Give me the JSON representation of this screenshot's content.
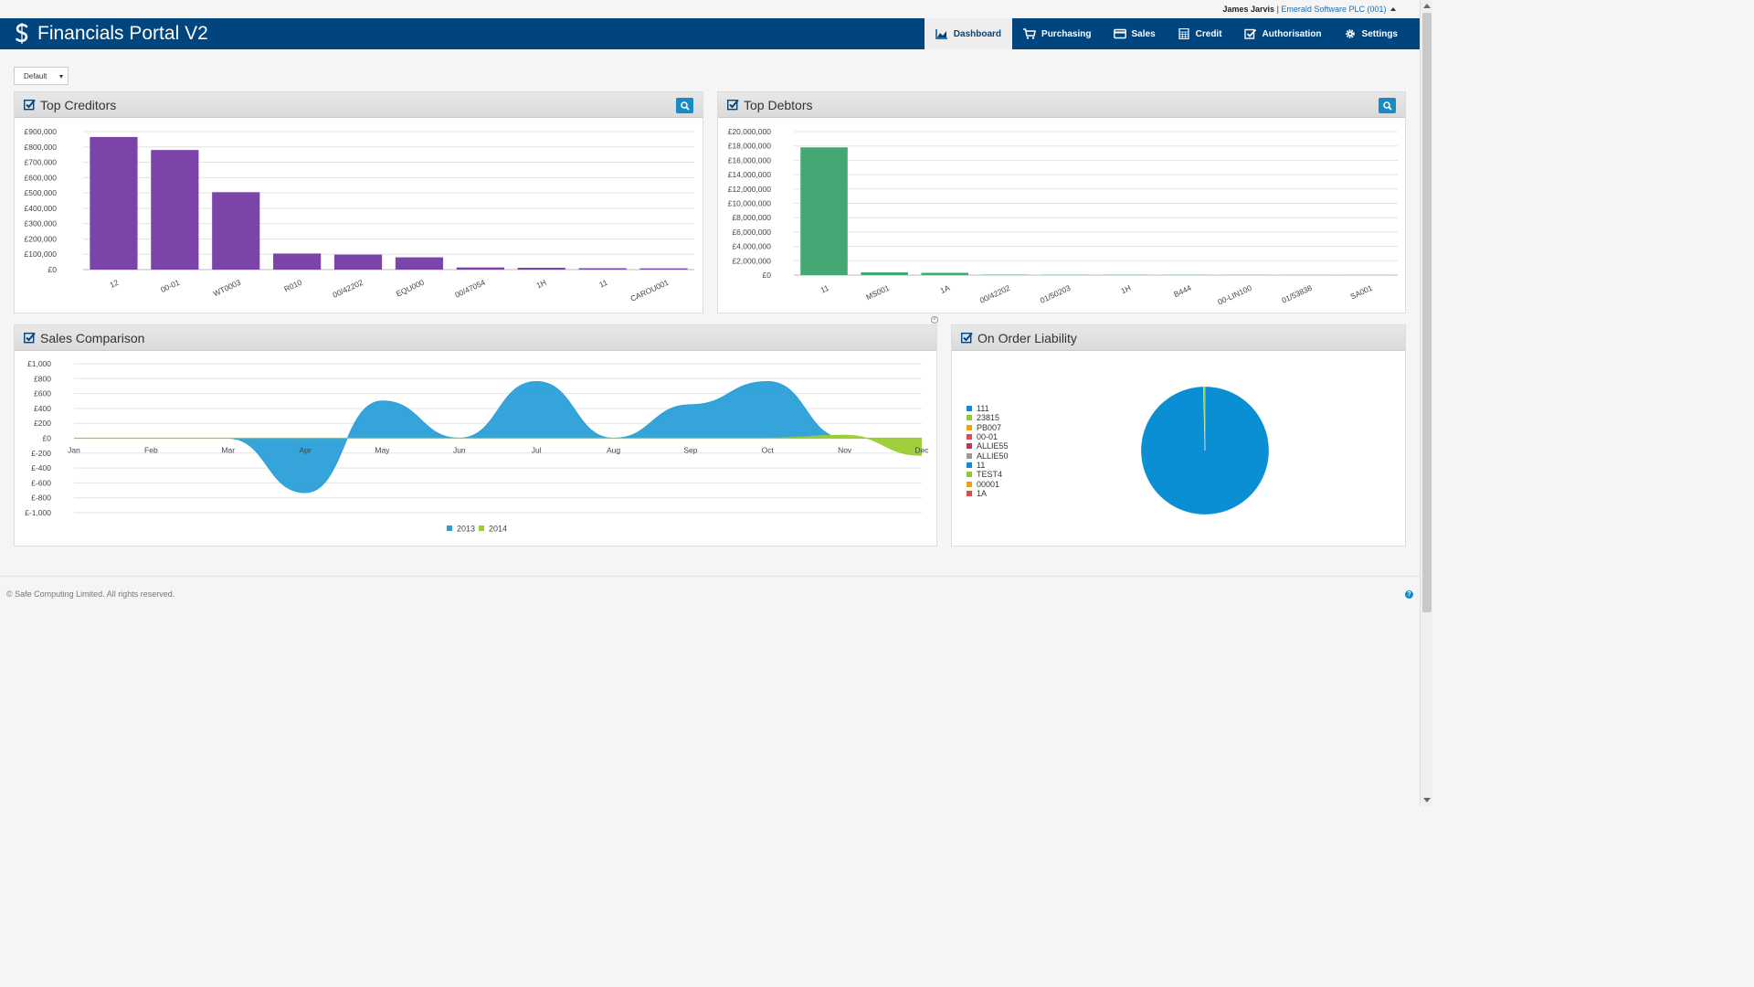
{
  "user": {
    "name": "James Jarvis",
    "company": "Emerald Software PLC (001)"
  },
  "header": {
    "title": "Financials Portal V2"
  },
  "nav": [
    {
      "label": "Dashboard",
      "icon": "area-chart-icon",
      "active": true
    },
    {
      "label": "Purchasing",
      "icon": "shopping-cart-icon",
      "active": false
    },
    {
      "label": "Sales",
      "icon": "credit-card-icon",
      "active": false
    },
    {
      "label": "Credit",
      "icon": "calculator-icon",
      "active": false
    },
    {
      "label": "Authorisation",
      "icon": "check-square-icon",
      "active": false
    },
    {
      "label": "Settings",
      "icon": "gear-icon",
      "active": false
    }
  ],
  "layout_select": {
    "value": "Default"
  },
  "panels": {
    "creditors": {
      "title": "Top Creditors"
    },
    "debtors": {
      "title": "Top Debtors"
    },
    "sales": {
      "title": "Sales Comparison"
    },
    "orders": {
      "title": "On Order Liability"
    }
  },
  "footer": {
    "copyright": "© Safe Computing Limited. All rights reserved.",
    "help": "?"
  },
  "colors": {
    "brand": "#00457e",
    "creditors_bar": "#7b44a8",
    "debtors_bar": "#44a774",
    "series_2013": "#2a9fd8",
    "series_2014": "#9acd32"
  },
  "chart_data": [
    {
      "id": "creditors",
      "type": "bar",
      "categories": [
        "12",
        "00-01",
        "WT0003",
        "R010",
        "00/42202",
        "EQU000",
        "00/47054",
        "1H",
        "11",
        "CAROU001"
      ],
      "values": [
        865000,
        780000,
        505000,
        105000,
        98000,
        80000,
        14000,
        12000,
        9000,
        8000
      ],
      "ylim": [
        0,
        900000
      ],
      "yticks": [
        "£900,000",
        "£800,000",
        "£700,000",
        "£600,000",
        "£500,000",
        "£400,000",
        "£300,000",
        "£200,000",
        "£100,000",
        "£0"
      ],
      "grid": true
    },
    {
      "id": "debtors",
      "type": "bar",
      "categories": [
        "11",
        "MS001",
        "1A",
        "00/42202",
        "01/50203",
        "1H",
        "B444",
        "00-LIN100",
        "01/53838",
        "SA001"
      ],
      "values": [
        17800000,
        380000,
        320000,
        50000,
        40000,
        30000,
        25000,
        20000,
        15000,
        10000
      ],
      "ylim": [
        0,
        20000000
      ],
      "yticks": [
        "£20,000,000",
        "£18,000,000",
        "£16,000,000",
        "£14,000,000",
        "£12,000,000",
        "£10,000,000",
        "£8,000,000",
        "£6,000,000",
        "£4,000,000",
        "£2,000,000",
        "£0"
      ],
      "grid": true
    },
    {
      "id": "sales",
      "type": "area",
      "categories": [
        "Jan",
        "Feb",
        "Mar",
        "Apr",
        "May",
        "Jun",
        "Jul",
        "Aug",
        "Sep",
        "Oct",
        "Nov",
        "Dec"
      ],
      "series": [
        {
          "name": "2013",
          "values": [
            0,
            0,
            0,
            -730,
            500,
            0,
            760,
            0,
            450,
            760,
            0,
            0
          ]
        },
        {
          "name": "2014",
          "values": [
            0,
            0,
            0,
            0,
            0,
            0,
            0,
            0,
            0,
            0,
            40,
            -230
          ]
        }
      ],
      "ylim": [
        -1000,
        1000
      ],
      "yticks": [
        "£1,000",
        "£800",
        "£600",
        "£400",
        "£200",
        "£0",
        "£-200",
        "£-400",
        "£-600",
        "£-800",
        "£-1,000"
      ],
      "legend": "bottom",
      "grid": true
    },
    {
      "id": "orders",
      "type": "pie",
      "labels": [
        "111",
        "23815",
        "PB007",
        "00-01",
        "ALLIE55",
        "ALLIE50",
        "11",
        "TEST4",
        "00001",
        "1A"
      ],
      "colors": [
        "#0a8ed4",
        "#8cc63e",
        "#f0a30a",
        "#e04a4a",
        "#c0394b",
        "#999999",
        "#0a8ed4",
        "#8cc63e",
        "#f0a30a",
        "#e04a4a"
      ],
      "values": [
        99.6,
        0.4,
        0,
        0,
        0,
        0,
        0,
        0,
        0,
        0
      ],
      "legend": "left"
    }
  ]
}
